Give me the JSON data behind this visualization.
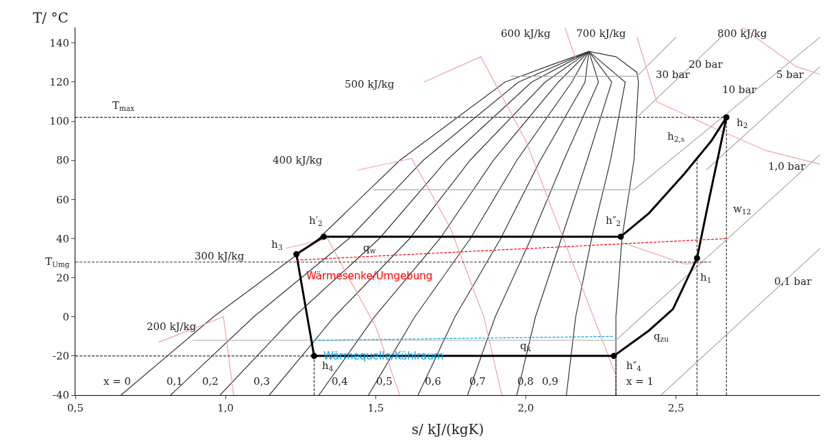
{
  "chart_data": {
    "type": "line",
    "xlabel": "s/ kJ/(kgK)",
    "ylabel": "T/ °C",
    "xlim": [
      0.5,
      2.98
    ],
    "ylim": [
      -40,
      148
    ],
    "xticks": [
      {
        "value": 0.5,
        "label": "0,5"
      },
      {
        "value": 1.0,
        "label": "1,0"
      },
      {
        "value": 1.5,
        "label": "1,5"
      },
      {
        "value": 2.0,
        "label": "2,0"
      },
      {
        "value": 2.5,
        "label": "2,5"
      }
    ],
    "yticks": [
      -40,
      -20,
      0,
      20,
      40,
      60,
      80,
      100,
      120,
      140
    ],
    "legend": false,
    "series": [
      {
        "color": "#333333",
        "line_style": "solid",
        "x": [
          0.652,
          0.96,
          1.31,
          1.58,
          1.93,
          2.07,
          2.21,
          2.3,
          2.37,
          2.375,
          2.36,
          2.32,
          2.3,
          2.3
        ],
        "values": [
          -40,
          0,
          40,
          80,
          120,
          128,
          135.7,
          133,
          125,
          120,
          80,
          40,
          0,
          -40
        ]
      },
      {
        "color": "#333333",
        "line_style": "solid",
        "x": [
          0.817,
          1.094,
          1.411,
          1.658,
          1.975,
          2.21
        ],
        "values": [
          -40,
          0,
          40,
          80,
          120,
          135.7
        ]
      },
      {
        "color": "#333333",
        "line_style": "solid",
        "x": [
          0.982,
          1.228,
          1.512,
          1.736,
          2.019,
          2.21
        ],
        "values": [
          -40,
          0,
          40,
          80,
          120,
          135.7
        ]
      },
      {
        "color": "#333333",
        "line_style": "solid",
        "x": [
          1.146,
          1.362,
          1.613,
          1.814,
          2.064,
          2.21
        ],
        "values": [
          -40,
          0,
          40,
          80,
          120,
          135.7
        ]
      },
      {
        "color": "#333333",
        "line_style": "solid",
        "x": [
          1.311,
          1.496,
          1.714,
          1.892,
          2.108,
          2.21
        ],
        "values": [
          -40,
          0,
          40,
          80,
          120,
          135.7
        ]
      },
      {
        "color": "#333333",
        "line_style": "solid",
        "x": [
          1.476,
          1.63,
          1.815,
          1.97,
          2.153,
          2.21
        ],
        "values": [
          -40,
          0,
          40,
          80,
          120,
          135.7
        ]
      },
      {
        "color": "#333333",
        "line_style": "solid",
        "x": [
          1.641,
          1.764,
          1.916,
          2.048,
          2.197,
          2.21
        ],
        "values": [
          -40,
          0,
          40,
          80,
          120,
          135.7
        ]
      },
      {
        "color": "#333333",
        "line_style": "solid",
        "x": [
          1.806,
          1.898,
          2.017,
          2.126,
          2.242,
          2.21
        ],
        "values": [
          -40,
          0,
          40,
          80,
          120,
          135.7
        ]
      },
      {
        "color": "#333333",
        "line_style": "solid",
        "x": [
          1.97,
          2.032,
          2.118,
          2.204,
          2.286,
          2.21
        ],
        "values": [
          -40,
          0,
          40,
          80,
          120,
          135.7
        ]
      },
      {
        "color": "#333333",
        "line_style": "solid",
        "x": [
          2.135,
          2.166,
          2.219,
          2.282,
          2.331,
          2.21
        ],
        "values": [
          -40,
          0,
          40,
          80,
          120,
          135.7
        ]
      },
      {
        "color": "#aaaaaa",
        "line_style": "solid",
        "x": [
          1.95,
          2.37,
          2.5
        ],
        "values": [
          123,
          123,
          143
        ]
      },
      {
        "color": "#aaaaaa",
        "line_style": "solid",
        "x": [
          1.76,
          2.37,
          2.65
        ],
        "values": [
          102,
          102,
          143
        ]
      },
      {
        "color": "#aaaaaa",
        "line_style": "solid",
        "x": [
          1.49,
          2.36,
          2.98
        ],
        "values": [
          65,
          65,
          143
        ]
      },
      {
        "color": "#aaaaaa",
        "line_style": "solid",
        "x": [
          2.6,
          2.98
        ],
        "values": [
          75,
          128
        ]
      },
      {
        "color": "#aaaaaa",
        "line_style": "solid",
        "x": [
          0.89,
          2.3,
          2.98
        ],
        "values": [
          -12,
          -12,
          83
        ]
      },
      {
        "color": "#aaaaaa",
        "line_style": "solid",
        "x": [
          2.45,
          2.98
        ],
        "values": [
          -40,
          35
        ]
      },
      {
        "color": "#f4a0a0",
        "line_style": "solid",
        "x": [
          0.777,
          0.993,
          1.027
        ],
        "values": [
          -13,
          0,
          -40
        ]
      },
      {
        "color": "#f4a0a0",
        "line_style": "solid",
        "x": [
          1.2,
          1.34,
          1.41,
          1.5,
          1.58
        ],
        "values": [
          35,
          40,
          20,
          -5,
          -40
        ]
      },
      {
        "color": "#f4a0a0",
        "line_style": "solid",
        "x": [
          1.44,
          1.62,
          1.75,
          1.86,
          1.92
        ],
        "values": [
          75,
          81,
          45,
          0,
          -40
        ]
      },
      {
        "color": "#f4a0a0",
        "line_style": "solid",
        "x": [
          1.66,
          1.85,
          2.0,
          2.2,
          2.3
        ],
        "values": [
          120,
          133,
          90,
          10,
          -30
        ]
      },
      {
        "color": "#f4a0a0",
        "line_style": "solid",
        "x": [
          2.32,
          2.53,
          2.6
        ],
        "values": [
          38,
          27,
          28
        ]
      },
      {
        "color": "#f4a0a0",
        "line_style": "solid",
        "x": [
          2.13,
          2.17
        ],
        "values": [
          148,
          130
        ]
      },
      {
        "color": "#f4a0a0",
        "line_style": "solid",
        "x": [
          2.37,
          2.436,
          2.62,
          2.8,
          2.98
        ],
        "values": [
          143,
          110,
          97,
          85,
          78
        ]
      },
      {
        "color": "#f4a0a0",
        "line_style": "solid",
        "x": [
          2.72,
          2.9,
          2.98
        ],
        "values": [
          148,
          128,
          124
        ]
      },
      {
        "color": "#333333",
        "line_style": "dashed",
        "x": [
          0.5,
          2.668
        ],
        "values": [
          102,
          102
        ]
      },
      {
        "color": "#333333",
        "line_style": "dashed",
        "x": [
          0.5,
          2.62
        ],
        "values": [
          28,
          28
        ]
      },
      {
        "color": "#333333",
        "line_style": "dashed",
        "x": [
          0.5,
          1.295
        ],
        "values": [
          -20,
          -20
        ]
      },
      {
        "color": "#333333",
        "line_style": "dashed",
        "x": [
          1.295,
          1.295
        ],
        "values": [
          -40,
          -20
        ]
      },
      {
        "color": "#333333",
        "line_style": "dashed",
        "x": [
          2.3,
          2.3
        ],
        "values": [
          -40,
          -20
        ]
      },
      {
        "color": "#333333",
        "line_style": "dashed",
        "x": [
          2.57,
          2.57
        ],
        "values": [
          -40,
          82
        ]
      },
      {
        "color": "#333333",
        "line_style": "dashed",
        "x": [
          2.668,
          2.668
        ],
        "values": [
          -40,
          102
        ]
      },
      {
        "color": "#000000",
        "line_style": "solid",
        "x": [
          2.293,
          2.41,
          2.49,
          2.57
        ],
        "values": [
          -20,
          -7,
          4,
          30
        ]
      },
      {
        "color": "#000000",
        "line_style": "solid",
        "x": [
          2.57,
          2.61,
          2.668
        ],
        "values": [
          30,
          60,
          102
        ]
      },
      {
        "color": "#000000",
        "line_style": "solid",
        "x": [
          2.316,
          2.41,
          2.527,
          2.618,
          2.668
        ],
        "values": [
          41,
          53,
          73,
          90,
          102
        ]
      },
      {
        "color": "#000000",
        "line_style": "solid",
        "x": [
          1.327,
          2.316
        ],
        "values": [
          41,
          41
        ]
      },
      {
        "color": "#000000",
        "line_style": "solid",
        "x": [
          1.236,
          1.327
        ],
        "values": [
          32,
          41
        ]
      },
      {
        "color": "#000000",
        "line_style": "solid",
        "x": [
          1.236,
          1.295
        ],
        "values": [
          32,
          -20
        ]
      },
      {
        "color": "#000000",
        "line_style": "solid",
        "x": [
          1.295,
          2.293
        ],
        "values": [
          -20,
          -20
        ]
      },
      {
        "type": "scatter",
        "marker": "circle",
        "color": "#000000",
        "x": [
          2.57,
          2.668,
          2.316,
          1.327,
          1.236,
          1.295,
          2.293
        ],
        "values": [
          30,
          102,
          41,
          41,
          32,
          -20,
          -20
        ]
      },
      {
        "name": "Wärmesenke/Umgebung",
        "color": "#ff0000",
        "line_style": "dashed",
        "x": [
          1.236,
          2.668
        ],
        "values": [
          29,
          40
        ]
      },
      {
        "name": "Wärmequelle/Kühlraum",
        "color": "#00a0e0",
        "line_style": "dashed",
        "x": [
          1.295,
          2.293
        ],
        "values": [
          -12,
          -10
        ]
      }
    ],
    "annotations": [
      "T$_{max}$",
      "T$_{Umg}$",
      "h$_{2}$",
      "h$_{2,s}$",
      "h′$_{2}$",
      "h″$_{2}$",
      "h$_{3}$",
      "h$_{4}$",
      "h″$_{4}$",
      "h$_{1}$",
      "q$_{w}$",
      "q$_{k}$",
      "q$_{zu}$",
      "w$_{12}$",
      "x = 0",
      "0,1",
      "0,2",
      "0,3",
      "0,4",
      "0,5",
      "0,6",
      "0,7",
      "0,8",
      "0,9",
      "x = 1",
      "200 kJ/kg",
      "300 kJ/kg",
      "400 kJ/kg",
      "500 kJ/kg",
      "600 kJ/kg",
      "700 kJ/kg",
      "800 kJ/kg",
      "30 bar",
      "20 bar",
      "10 bar",
      "5 bar",
      "1,0 bar",
      "0,1 bar"
    ]
  }
}
